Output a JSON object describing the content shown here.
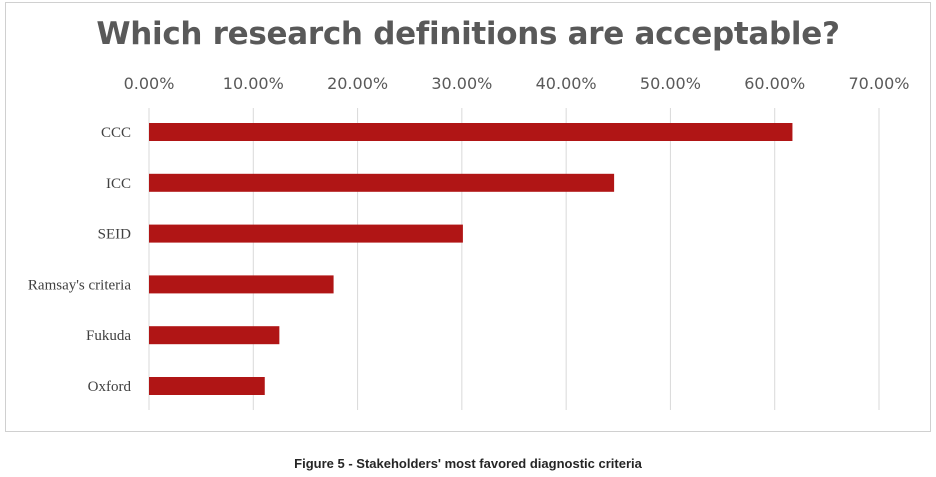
{
  "chart_data": {
    "type": "bar",
    "orientation": "horizontal",
    "title": "Which research definitions are acceptable?",
    "categories": [
      "CCC",
      "ICC",
      "SEID",
      "Ramsay's criteria",
      "Fukuda",
      "Oxford"
    ],
    "values": [
      61.7,
      44.6,
      30.1,
      17.7,
      12.5,
      11.1
    ],
    "xlim": [
      0,
      70
    ],
    "x_ticks": [
      "0.00%",
      "10.00%",
      "20.00%",
      "30.00%",
      "40.00%",
      "50.00%",
      "60.00%",
      "70.00%"
    ],
    "x_tick_values": [
      0,
      10,
      20,
      30,
      40,
      50,
      60,
      70
    ],
    "x_axis_position": "top",
    "grid": true,
    "legend": "none",
    "bar_color": "#B01515",
    "grid_color": "#d9d9d9"
  },
  "caption": "Figure 5 - Stakeholders' most favored diagnostic criteria"
}
